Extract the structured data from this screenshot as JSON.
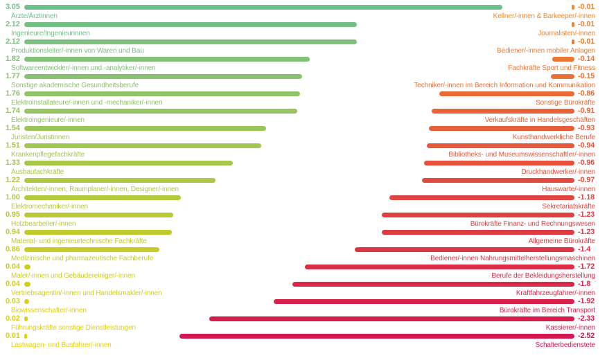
{
  "chart_data": {
    "type": "bar",
    "subtype": "diverging-horizontal-paired",
    "title": "",
    "legend": null,
    "grid": false,
    "axes_visible": false,
    "left_value_range": [
      0,
      3.05
    ],
    "right_value_range": [
      -2.52,
      0
    ],
    "left_color_start": "#6FBE8D",
    "left_color_end": "#E6D100",
    "right_color_start": "#F0882E",
    "right_color_end": "#D6164E",
    "left_colors": [
      "#6FBE8D",
      "#75BF86",
      "#7CC07E",
      "#82C177",
      "#88C26F",
      "#8EC368",
      "#95C460",
      "#9BC559",
      "#A1C652",
      "#A7C74A",
      "#AEC843",
      "#B4C93B",
      "#BACA34",
      "#C0CB2D",
      "#C7CC25",
      "#CDCD1E",
      "#D3CE16",
      "#D9CF0F",
      "#E0D007",
      "#E6D100"
    ],
    "right_colors": [
      "#F0882E",
      "#EF8230",
      "#ED7C31",
      "#EC7633",
      "#EB7035",
      "#E96A36",
      "#E86438",
      "#E65E3A",
      "#E5583B",
      "#E4523D",
      "#E24C3F",
      "#E14641",
      "#E04042",
      "#DE3A44",
      "#DD3446",
      "#DB2E47",
      "#DA2849",
      "#D9224B",
      "#D71C4C",
      "#D6164E"
    ],
    "rows": [
      {
        "left_value": "3.05",
        "left_label": "Ärzte/Ärztinnen",
        "right_value": "-0.01",
        "right_label": "Kellner/-innen & Barkeeper/-innen"
      },
      {
        "left_value": "2.12",
        "left_label": "Ingenieure/Ingenieurinnen",
        "right_value": "-0.01",
        "right_label": "Journalisten/-innen"
      },
      {
        "left_value": "2.12",
        "left_label": "Produktionsleiter/-innen von Waren und Bau",
        "right_value": "-0.01",
        "right_label": "Bediener/-innen mobiler Anlagen"
      },
      {
        "left_value": "1.82",
        "left_label": "Softwareentwickler/-innen und -analytiker/-innen",
        "right_value": "-0.14",
        "right_label": "Fachkräfte Sport und Fitness"
      },
      {
        "left_value": "1.77",
        "left_label": "Sonstige akademische Gesundheitsberufe",
        "right_value": "-0.15",
        "right_label": "Techniker/-innen im Bereich Information und Kommunikation"
      },
      {
        "left_value": "1.76",
        "left_label": "Elektroinstallateure/-innen und -mechaniker/-innen",
        "right_value": "-0.86",
        "right_label": "Sonstige Bürokräfte"
      },
      {
        "left_value": "1.74",
        "left_label": "Elektroingenieure/-innen",
        "right_value": "-0.91",
        "right_label": "Verkaufskräfte in Handelsgeschäften"
      },
      {
        "left_value": "1.54",
        "left_label": "Juristen/Juristinnen",
        "right_value": "-0.93",
        "right_label": "Kunsthandwerkliche Berufe"
      },
      {
        "left_value": "1.51",
        "left_label": "Krankenpflegefachkräfte",
        "right_value": "-0.94",
        "right_label": "Bibliotheks- und Museumswissenschaftler/-innen"
      },
      {
        "left_value": "1.33",
        "left_label": "Ausbaufachkräfte",
        "right_value": "-0.96",
        "right_label": "Druckhandwerker/-innen"
      },
      {
        "left_value": "1.22",
        "left_label": "Architekten/-innen, Raumplaner/-innen, Designer/-innen",
        "right_value": "-0.97",
        "right_label": "Hauswarte/-innen"
      },
      {
        "left_value": "1.00",
        "left_label": "Elektromechaniker/-innen",
        "right_value": "-1.18",
        "right_label": "Sekretariatskräfte"
      },
      {
        "left_value": "0.95",
        "left_label": "Holzbearbeiter/-innen",
        "right_value": "-1.23",
        "right_label": "Bürokräfte Finanz- und Rechnungswesen"
      },
      {
        "left_value": "0.94",
        "left_label": "Material- und ingenieurtechnische Fachkräfte",
        "right_value": "-1.23",
        "right_label": "Allgemeine Bürokräfte"
      },
      {
        "left_value": "0.86",
        "left_label": "Medizinische und pharmazeutische Fachberufe",
        "right_value": "-1.4",
        "right_label": "Bediener/-innen Nahrungsmittelherstellungsmaschinen"
      },
      {
        "left_value": "0.04",
        "left_label": "Maler/-innen und Gebäudereiniger/-innen",
        "right_value": "-1.72",
        "right_label": "Berufe der Bekleidungsherstellung"
      },
      {
        "left_value": "0.04",
        "left_label": "Vertriebsagentin/-innen und Handelsmakler/-innen",
        "right_value": "-1.8",
        "right_label": "Kraftfahrzeugfahrer/-innen"
      },
      {
        "left_value": "0.03",
        "left_label": "Biowissenschafter/-innen",
        "right_value": "-1.92",
        "right_label": "Bürokräfte im Bereich Transport"
      },
      {
        "left_value": "0.02",
        "left_label": "Führungskräfte sonstige Dienstleistungen",
        "right_value": "-2.33",
        "right_label": "Kassierer/-innen"
      },
      {
        "left_value": "0.01",
        "left_label": "Lastwagen- und Busfahrer/-innen",
        "right_value": "-2.52",
        "right_label": "Schalterbedienstete"
      }
    ]
  }
}
